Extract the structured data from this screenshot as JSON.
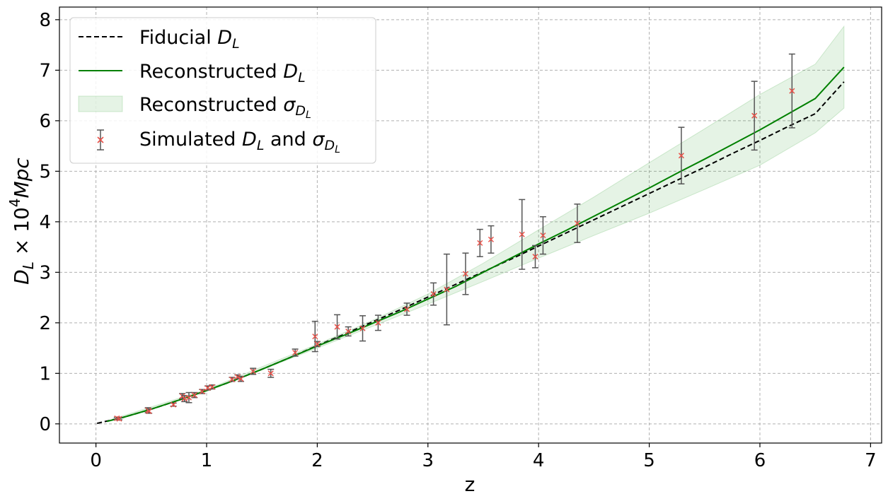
{
  "chart_data": {
    "type": "line",
    "xlabel": "z",
    "ylabel_main": "D",
    "ylabel_sub": "L",
    "ylabel_times": " × 10",
    "ylabel_exp": "4",
    "ylabel_unit": "Mpc",
    "xlim": [
      -0.33,
      7.1
    ],
    "ylim": [
      -0.38,
      8.25
    ],
    "x_ticks": [
      0,
      1,
      2,
      3,
      4,
      5,
      6,
      7
    ],
    "y_ticks": [
      0,
      1,
      2,
      3,
      4,
      5,
      6,
      7,
      8
    ],
    "grid": true,
    "legend_position": "top-left",
    "legend": {
      "fiducial": {
        "pre": "Fiducial ",
        "sym": "D",
        "sub": "L",
        "post": ""
      },
      "reconstructed": {
        "pre": "Reconstructed ",
        "sym": "D",
        "sub": "L",
        "post": ""
      },
      "sigma": {
        "pre": "Reconstructed ",
        "sym": "σ",
        "sub": "D",
        "subsub": "L",
        "post": ""
      },
      "simulated": {
        "pre": "Simulated ",
        "sym": "D",
        "sub": "L",
        "mid": " and ",
        "sym2": "σ",
        "sub2": "D",
        "subsub2": "L"
      }
    },
    "series": [
      {
        "name": "Fiducial",
        "style": "dashed",
        "color": "#000000",
        "x": [
          0.01,
          0.25,
          0.5,
          0.75,
          1.0,
          1.25,
          1.5,
          1.75,
          2.0,
          2.25,
          2.5,
          2.75,
          3.0,
          3.25,
          3.5,
          3.75,
          4.0,
          4.25,
          4.5,
          4.75,
          5.0,
          5.25,
          5.5,
          5.75,
          6.0,
          6.25,
          6.5,
          6.76
        ],
        "y": [
          0.01,
          0.13,
          0.29,
          0.47,
          0.66,
          0.86,
          1.08,
          1.31,
          1.55,
          1.78,
          2.02,
          2.26,
          2.51,
          2.76,
          3.01,
          3.26,
          3.52,
          3.78,
          4.04,
          4.3,
          4.56,
          4.82,
          5.08,
          5.35,
          5.61,
          5.88,
          6.14,
          6.77
        ]
      },
      {
        "name": "Reconstructed",
        "style": "solid",
        "color": "#008000",
        "x": [
          0.1,
          0.25,
          0.5,
          0.75,
          1.0,
          1.25,
          1.5,
          1.75,
          2.0,
          2.25,
          2.5,
          2.75,
          3.0,
          3.25,
          3.5,
          3.75,
          4.0,
          4.25,
          4.5,
          4.75,
          5.0,
          5.25,
          5.5,
          5.75,
          6.0,
          6.25,
          6.5,
          6.76
        ],
        "y": [
          0.05,
          0.13,
          0.29,
          0.47,
          0.66,
          0.86,
          1.08,
          1.31,
          1.54,
          1.76,
          1.99,
          2.22,
          2.47,
          2.72,
          3.0,
          3.28,
          3.56,
          3.83,
          4.11,
          4.39,
          4.67,
          4.96,
          5.24,
          5.53,
          5.82,
          6.13,
          6.44,
          7.06
        ]
      }
    ],
    "band": {
      "name": "Reconstructed sigma",
      "color": "#2ca02c",
      "x": [
        0.1,
        1.0,
        2.0,
        2.5,
        3.0,
        3.5,
        4.0,
        4.5,
        5.0,
        5.5,
        6.0,
        6.5,
        6.76
      ],
      "lower": [
        0.04,
        0.64,
        1.5,
        1.93,
        2.37,
        2.82,
        3.28,
        3.73,
        4.17,
        4.64,
        5.12,
        5.76,
        6.25
      ],
      "upper": [
        0.06,
        0.68,
        1.58,
        2.05,
        2.57,
        3.18,
        3.84,
        4.49,
        5.17,
        5.84,
        6.52,
        7.12,
        7.87
      ]
    },
    "points": {
      "name": "Simulated",
      "marker_color": "#e8524a",
      "errorbar_color": "#555555",
      "data": [
        {
          "x": 0.19,
          "y": 0.11,
          "err": 0.02
        },
        {
          "x": 0.21,
          "y": 0.1,
          "err": 0.02
        },
        {
          "x": 0.47,
          "y": 0.27,
          "err": 0.05
        },
        {
          "x": 0.48,
          "y": 0.25,
          "err": 0.04
        },
        {
          "x": 0.7,
          "y": 0.38,
          "err": 0.03
        },
        {
          "x": 0.78,
          "y": 0.55,
          "err": 0.05
        },
        {
          "x": 0.8,
          "y": 0.5,
          "err": 0.06
        },
        {
          "x": 0.84,
          "y": 0.52,
          "err": 0.1
        },
        {
          "x": 0.89,
          "y": 0.57,
          "err": 0.05
        },
        {
          "x": 0.96,
          "y": 0.64,
          "err": 0.04
        },
        {
          "x": 1.01,
          "y": 0.71,
          "err": 0.04
        },
        {
          "x": 1.05,
          "y": 0.73,
          "err": 0.04
        },
        {
          "x": 1.23,
          "y": 0.88,
          "err": 0.04
        },
        {
          "x": 1.28,
          "y": 0.93,
          "err": 0.04
        },
        {
          "x": 1.31,
          "y": 0.89,
          "err": 0.05
        },
        {
          "x": 1.42,
          "y": 1.04,
          "err": 0.06
        },
        {
          "x": 1.58,
          "y": 1.0,
          "err": 0.08
        },
        {
          "x": 1.8,
          "y": 1.41,
          "err": 0.07
        },
        {
          "x": 1.98,
          "y": 1.73,
          "err": 0.3
        },
        {
          "x": 2.0,
          "y": 1.58,
          "err": 0.05
        },
        {
          "x": 2.18,
          "y": 1.92,
          "err": 0.24
        },
        {
          "x": 2.28,
          "y": 1.83,
          "err": 0.09
        },
        {
          "x": 2.41,
          "y": 1.89,
          "err": 0.25
        },
        {
          "x": 2.55,
          "y": 2.0,
          "err": 0.15
        },
        {
          "x": 2.81,
          "y": 2.27,
          "err": 0.12
        },
        {
          "x": 3.05,
          "y": 2.57,
          "err": 0.22
        },
        {
          "x": 3.17,
          "y": 2.66,
          "err": 0.7
        },
        {
          "x": 3.34,
          "y": 2.97,
          "err": 0.41
        },
        {
          "x": 3.47,
          "y": 3.58,
          "err": 0.27
        },
        {
          "x": 3.57,
          "y": 3.65,
          "err": 0.27
        },
        {
          "x": 3.85,
          "y": 3.75,
          "err": 0.69
        },
        {
          "x": 3.97,
          "y": 3.31,
          "err": 0.22
        },
        {
          "x": 4.04,
          "y": 3.73,
          "err": 0.37
        },
        {
          "x": 4.35,
          "y": 3.97,
          "err": 0.38
        },
        {
          "x": 5.29,
          "y": 5.31,
          "err": 0.56
        },
        {
          "x": 5.95,
          "y": 6.1,
          "err": 0.68
        },
        {
          "x": 6.29,
          "y": 6.59,
          "err": 0.73
        }
      ]
    }
  }
}
